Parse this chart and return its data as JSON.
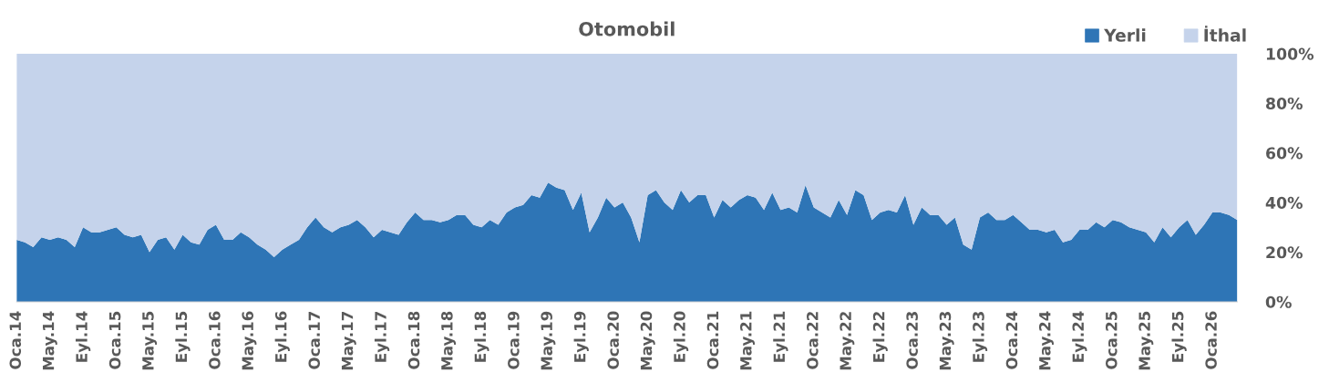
{
  "chart_data": {
    "type": "area",
    "title": "Otomobil",
    "stacked": true,
    "legend": "top right",
    "categories": [
      "Oca.14",
      null,
      null,
      null,
      "May.14",
      null,
      null,
      null,
      "Eyl.14",
      null,
      null,
      null,
      "Oca.15",
      null,
      null,
      null,
      "May.15",
      null,
      null,
      null,
      "Eyl.15",
      null,
      null,
      null,
      "Oca.16",
      null,
      null,
      null,
      "May.16",
      null,
      null,
      null,
      "Eyl.16",
      null,
      null,
      null,
      "Oca.17",
      null,
      null,
      null,
      "May.17",
      null,
      null,
      null,
      "Eyl.17",
      null,
      null,
      null,
      "Oca.18",
      null,
      null,
      null,
      "May.18",
      null,
      null,
      null,
      "Eyl.18",
      null,
      null,
      null,
      "Oca.19",
      null,
      null,
      null,
      "May.19",
      null,
      null,
      null,
      "Eyl.19",
      null,
      null,
      null,
      "Oca.20",
      null,
      null,
      null,
      "May.20",
      null,
      null,
      null,
      "Eyl.20",
      null,
      null,
      null,
      "Oca.21",
      null,
      null,
      null,
      "May.21",
      null,
      null,
      null,
      "Eyl.21",
      null,
      null,
      null,
      "Oca.22",
      null,
      null,
      null,
      "May.22",
      null,
      null,
      null,
      "Eyl.22",
      null,
      null,
      null,
      "Oca.23",
      null,
      null,
      null,
      "May.23",
      null,
      null,
      null,
      "Eyl.23",
      null,
      null,
      null,
      "Oca.24",
      null,
      null,
      null,
      "May.24",
      null,
      null,
      null,
      "Eyl.24",
      null,
      null,
      null,
      "Oca.25",
      null,
      null,
      null,
      "May.25",
      null,
      null,
      null,
      "Eyl.25",
      null,
      null,
      null,
      "Oca.26",
      null,
      null,
      null
    ],
    "ylim": [
      0,
      100
    ],
    "yticks": [
      {
        "value": 0,
        "label": "0%"
      },
      {
        "value": 20,
        "label": "20%"
      },
      {
        "value": 40,
        "label": "40%"
      },
      {
        "value": 60,
        "label": "60%"
      },
      {
        "value": 80,
        "label": "80%"
      },
      {
        "value": 100,
        "label": "100%"
      }
    ],
    "series": [
      {
        "name": "Yerli",
        "color": "#2e75b6",
        "values": [
          25,
          24,
          22,
          26,
          25,
          26,
          25,
          22,
          30,
          28,
          28,
          29,
          30,
          27,
          26,
          27,
          20,
          25,
          26,
          21,
          27,
          24,
          23,
          29,
          31,
          25,
          25,
          28,
          26,
          23,
          21,
          18,
          21,
          23,
          25,
          30,
          34,
          30,
          28,
          30,
          31,
          33,
          30,
          26,
          29,
          28,
          27,
          32,
          36,
          33,
          33,
          32,
          33,
          35,
          35,
          31,
          30,
          33,
          31,
          36,
          38,
          39,
          43,
          42,
          48,
          46,
          45,
          37,
          44,
          28,
          34,
          42,
          38,
          40,
          34,
          24,
          43,
          45,
          40,
          37,
          45,
          40,
          43,
          43,
          34,
          41,
          38,
          41,
          43,
          42,
          37,
          44,
          37,
          38,
          36,
          47,
          38,
          36,
          34,
          41,
          35,
          45,
          43,
          33,
          36,
          37,
          36,
          43,
          31,
          38,
          35,
          35,
          31,
          34,
          23,
          21,
          34,
          36,
          33,
          33,
          35,
          32,
          29,
          29,
          28,
          29,
          24,
          25,
          29,
          29,
          32,
          30,
          33,
          32,
          30,
          29,
          28,
          24,
          30,
          26,
          30,
          33,
          27,
          31,
          36,
          36,
          35,
          33
        ]
      },
      {
        "name": "İthal",
        "color": "#c5d3eb",
        "values": [
          75,
          76,
          78,
          74,
          75,
          74,
          75,
          78,
          70,
          72,
          72,
          71,
          70,
          73,
          74,
          73,
          80,
          75,
          74,
          79,
          73,
          76,
          77,
          71,
          69,
          75,
          75,
          72,
          74,
          77,
          79,
          82,
          79,
          77,
          75,
          70,
          66,
          70,
          72,
          70,
          69,
          67,
          70,
          74,
          71,
          72,
          73,
          68,
          64,
          67,
          67,
          68,
          67,
          65,
          65,
          69,
          70,
          67,
          69,
          64,
          62,
          61,
          57,
          58,
          52,
          54,
          55,
          63,
          56,
          72,
          66,
          58,
          62,
          60,
          66,
          76,
          57,
          55,
          60,
          63,
          55,
          60,
          57,
          57,
          66,
          59,
          62,
          59,
          57,
          58,
          63,
          56,
          63,
          62,
          64,
          53,
          62,
          64,
          66,
          59,
          65,
          55,
          57,
          67,
          64,
          63,
          64,
          57,
          69,
          62,
          65,
          65,
          69,
          66,
          77,
          79,
          66,
          64,
          67,
          67,
          65,
          68,
          71,
          71,
          72,
          71,
          76,
          75,
          71,
          71,
          68,
          70,
          67,
          68,
          70,
          71,
          72,
          76,
          70,
          74,
          70,
          67,
          73,
          69,
          64,
          64,
          65,
          67
        ]
      }
    ]
  }
}
